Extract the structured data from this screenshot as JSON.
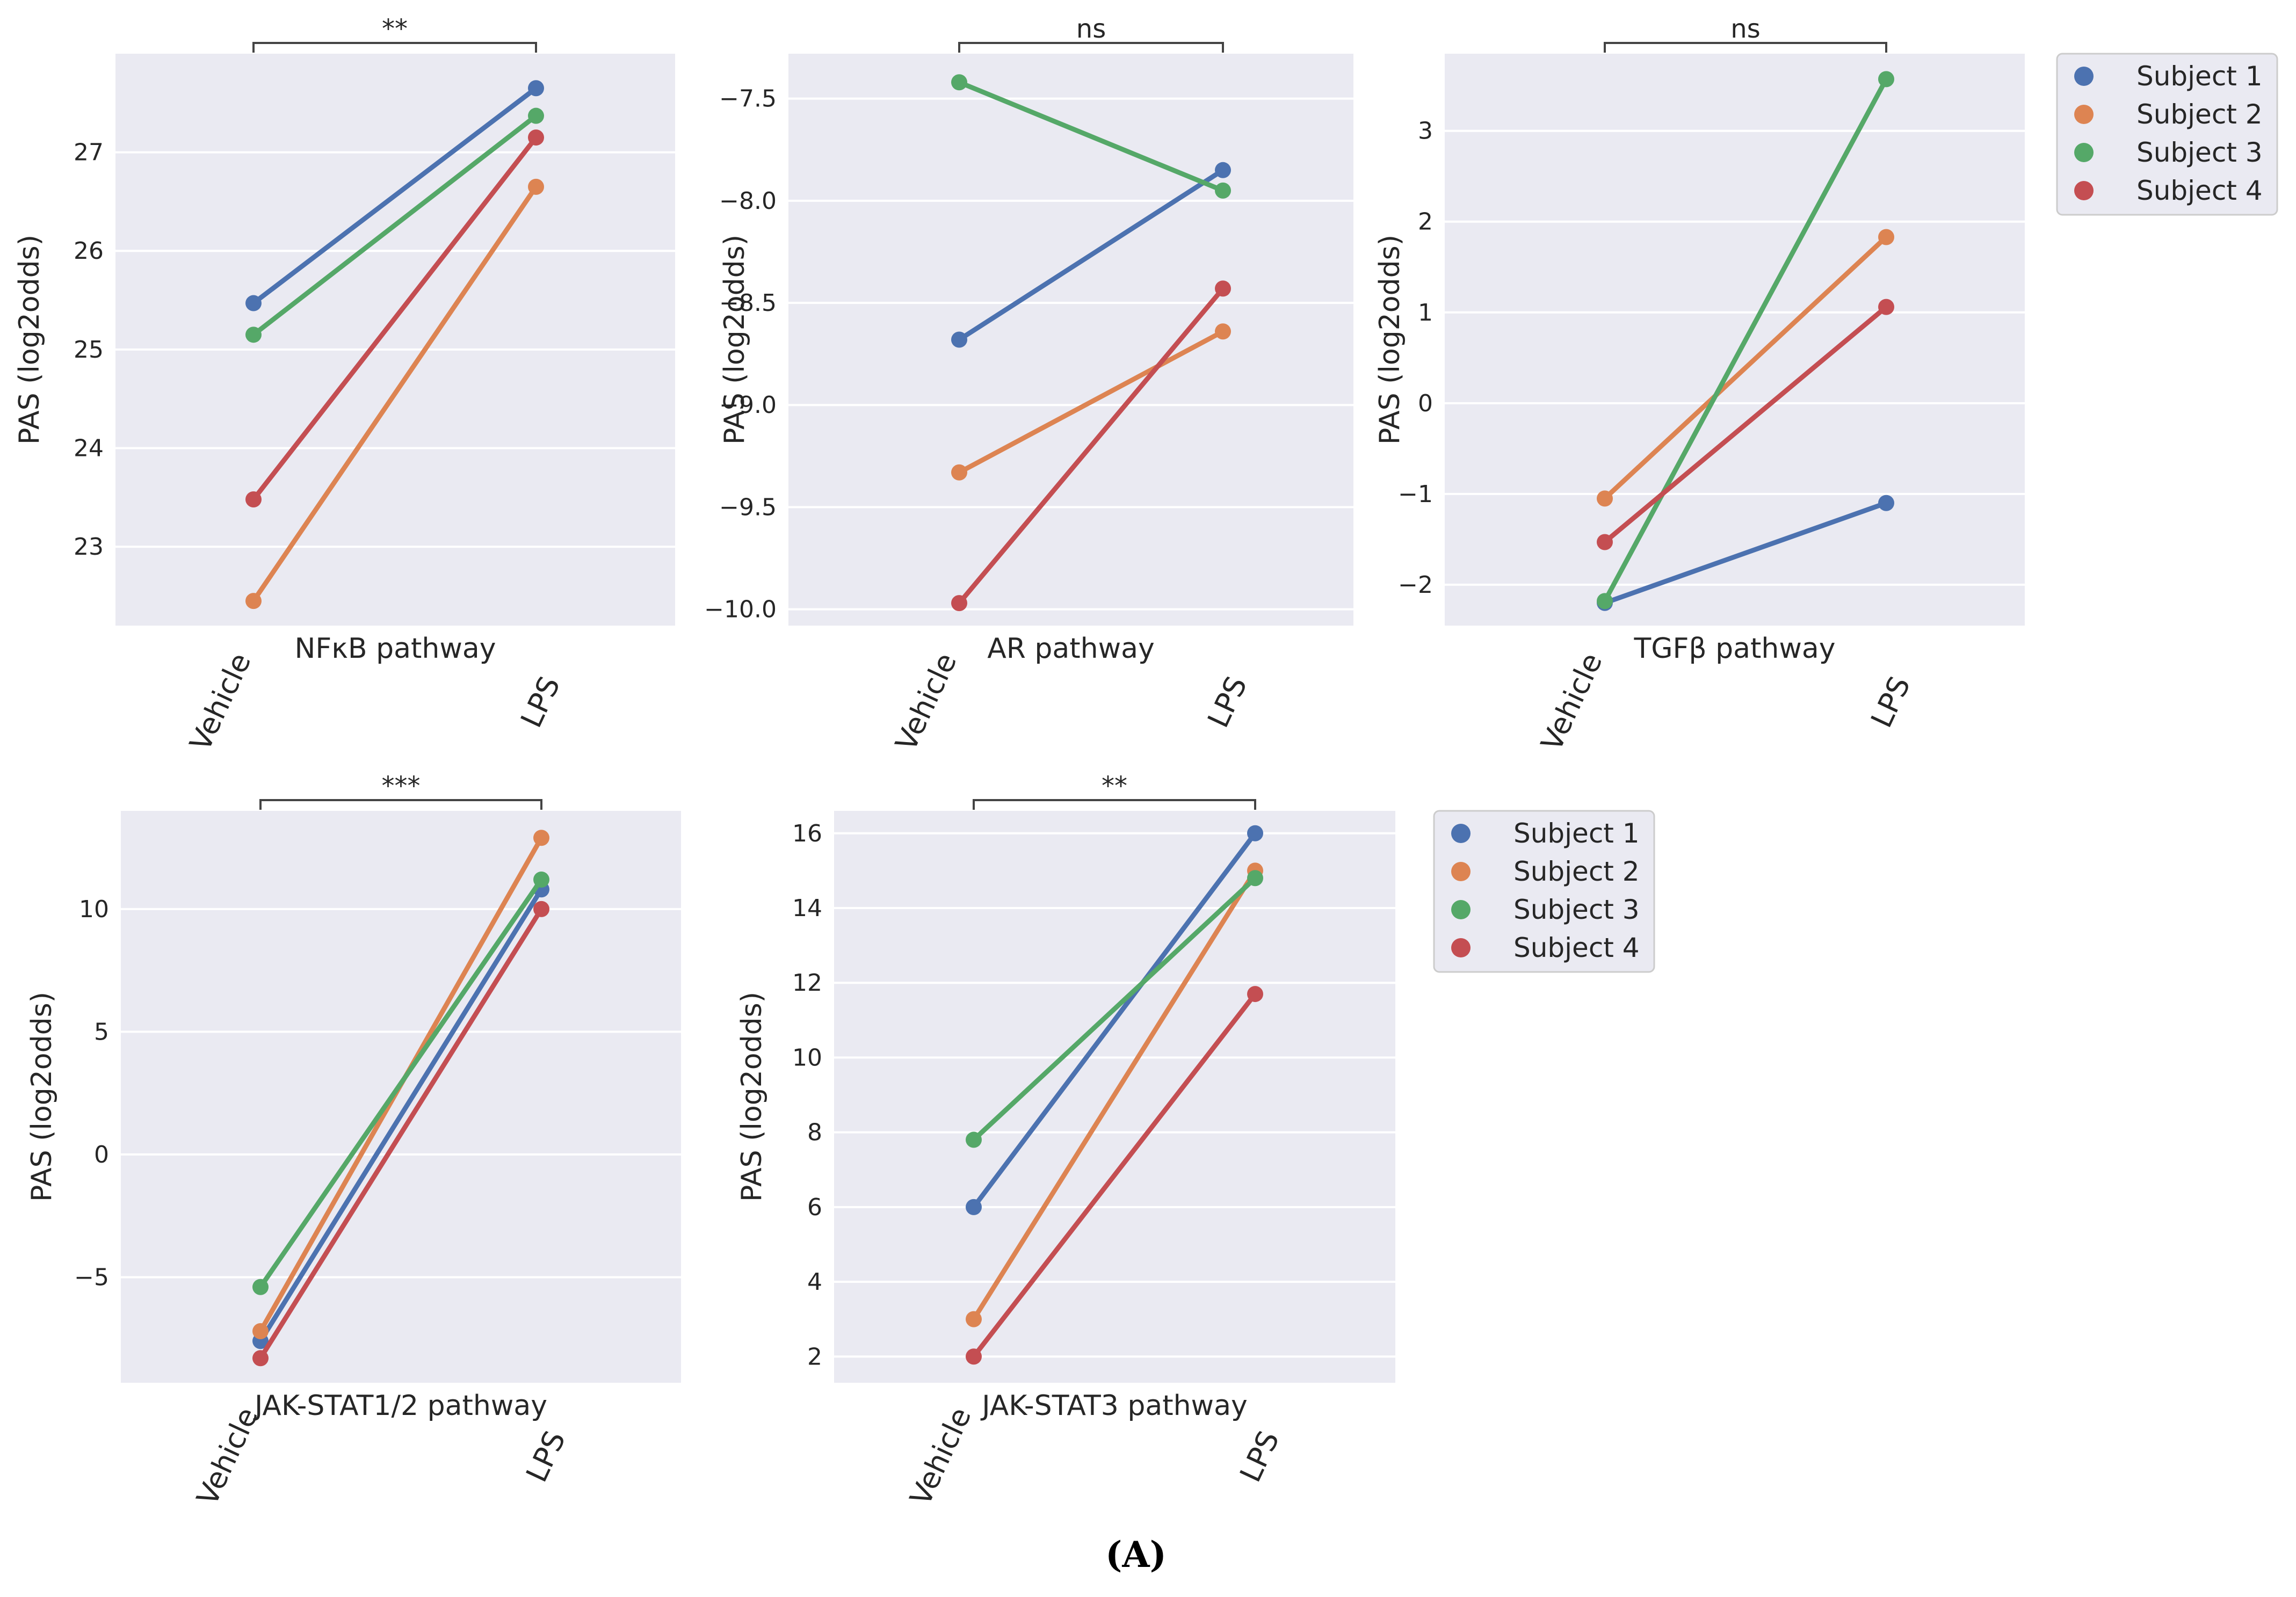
{
  "figure_label": "(A)",
  "colors": {
    "Subject 1": "#4c72b0",
    "Subject 2": "#dd8452",
    "Subject 3": "#55a868",
    "Subject 4": "#c44e52"
  },
  "chart_data": [
    {
      "type": "line",
      "title": "NFκB pathway",
      "categories": [
        "Vehicle",
        "LPS"
      ],
      "ylabel": "PAS (log2odds)",
      "ylim": [
        22.2,
        28.0
      ],
      "yticks": [
        23,
        24,
        25,
        26,
        27
      ],
      "ytick_labels": [
        "23",
        "24",
        "25",
        "26",
        "27"
      ],
      "significance": "**",
      "series": [
        {
          "name": "Subject 1",
          "values": [
            25.47,
            27.65
          ]
        },
        {
          "name": "Subject 2",
          "values": [
            22.45,
            26.65
          ]
        },
        {
          "name": "Subject 3",
          "values": [
            25.15,
            27.37
          ]
        },
        {
          "name": "Subject 4",
          "values": [
            23.48,
            27.15
          ]
        }
      ]
    },
    {
      "type": "line",
      "title": "AR pathway",
      "categories": [
        "Vehicle",
        "LPS"
      ],
      "ylabel": "PAS (log2odds)",
      "ylim": [
        -10.08,
        -7.28
      ],
      "yticks": [
        -7.5,
        -8.0,
        -8.5,
        -9.0,
        -9.5,
        -10.0
      ],
      "ytick_labels": [
        "−7.5",
        "−8.0",
        "−8.5",
        "−9.0",
        "−9.5",
        "−10.0"
      ],
      "significance": "ns",
      "series": [
        {
          "name": "Subject 1",
          "values": [
            -8.68,
            -7.85
          ]
        },
        {
          "name": "Subject 2",
          "values": [
            -9.33,
            -8.64
          ]
        },
        {
          "name": "Subject 3",
          "values": [
            -7.42,
            -7.95
          ]
        },
        {
          "name": "Subject 4",
          "values": [
            -9.97,
            -8.43
          ]
        }
      ]
    },
    {
      "type": "line",
      "title": "TGFβ pathway",
      "categories": [
        "Vehicle",
        "LPS"
      ],
      "ylabel": "PAS (log2odds)",
      "ylim": [
        -2.45,
        3.85
      ],
      "yticks": [
        3,
        2,
        1,
        0,
        -1,
        -2
      ],
      "ytick_labels": [
        "3",
        "2",
        "1",
        "0",
        "−1",
        "−2"
      ],
      "significance": "ns",
      "series": [
        {
          "name": "Subject 1",
          "values": [
            -2.2,
            -1.1
          ]
        },
        {
          "name": "Subject 2",
          "values": [
            -1.05,
            1.83
          ]
        },
        {
          "name": "Subject 3",
          "values": [
            -2.18,
            3.57
          ]
        },
        {
          "name": "Subject 4",
          "values": [
            -1.53,
            1.06
          ]
        }
      ]
    },
    {
      "type": "line",
      "title": "JAK-STAT1/2 pathway",
      "categories": [
        "Vehicle",
        "LPS"
      ],
      "ylabel": "PAS (log2odds)",
      "ylim": [
        -9.3,
        14.0
      ],
      "yticks": [
        10,
        5,
        0,
        -5
      ],
      "ytick_labels": [
        "10",
        "5",
        "0",
        "−5"
      ],
      "significance": "***",
      "series": [
        {
          "name": "Subject 1",
          "values": [
            -7.6,
            10.8
          ]
        },
        {
          "name": "Subject 2",
          "values": [
            -7.2,
            12.9
          ]
        },
        {
          "name": "Subject 3",
          "values": [
            -5.4,
            11.2
          ]
        },
        {
          "name": "Subject 4",
          "values": [
            -8.3,
            10.0
          ]
        }
      ]
    },
    {
      "type": "line",
      "title": "JAK-STAT3 pathway",
      "categories": [
        "Vehicle",
        "LPS"
      ],
      "ylabel": "PAS (log2odds)",
      "ylim": [
        1.3,
        16.6
      ],
      "yticks": [
        16,
        14,
        12,
        10,
        8,
        6,
        4,
        2
      ],
      "ytick_labels": [
        "16",
        "14",
        "12",
        "10",
        "8",
        "6",
        "4",
        "2"
      ],
      "significance": "**",
      "series": [
        {
          "name": "Subject 1",
          "values": [
            6.0,
            16.0
          ]
        },
        {
          "name": "Subject 2",
          "values": [
            3.0,
            15.0
          ]
        },
        {
          "name": "Subject 3",
          "values": [
            7.8,
            14.8
          ]
        },
        {
          "name": "Subject 4",
          "values": [
            2.0,
            11.7
          ]
        }
      ]
    }
  ],
  "legends": [
    {
      "entries": [
        "Subject 1",
        "Subject 2",
        "Subject 3",
        "Subject 4"
      ]
    },
    {
      "entries": [
        "Subject 1",
        "Subject 2",
        "Subject 3",
        "Subject 4"
      ]
    }
  ]
}
